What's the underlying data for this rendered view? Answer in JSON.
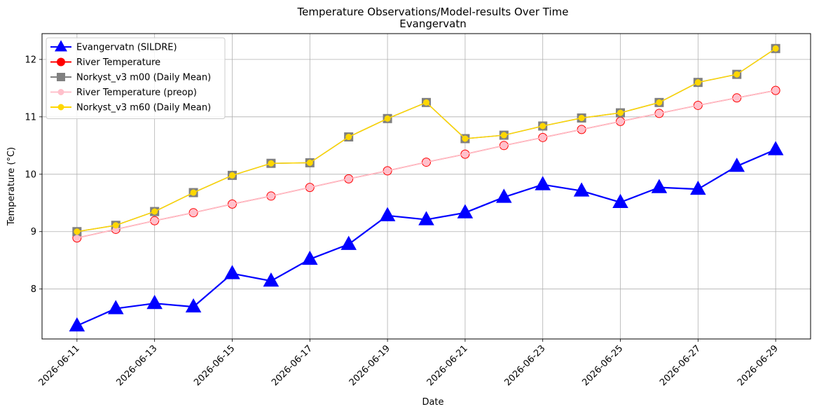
{
  "chart_data": {
    "type": "line",
    "title": "Temperature Observations/Model-results Over Time",
    "subtitle": "Evangervatn",
    "xlabel": "Date",
    "ylabel": "Temperature (°C)",
    "x": [
      "2026-06-11",
      "2026-06-12",
      "2026-06-13",
      "2026-06-14",
      "2026-06-15",
      "2026-06-16",
      "2026-06-17",
      "2026-06-18",
      "2026-06-19",
      "2026-06-20",
      "2026-06-21",
      "2026-06-22",
      "2026-06-23",
      "2026-06-24",
      "2026-06-25",
      "2026-06-26",
      "2026-06-27",
      "2026-06-28",
      "2026-06-29"
    ],
    "xticks": [
      "2026-06-11",
      "2026-06-13",
      "2026-06-15",
      "2026-06-17",
      "2026-06-19",
      "2026-06-21",
      "2026-06-23",
      "2026-06-25",
      "2026-06-27",
      "2026-06-29"
    ],
    "ylim": [
      7.13,
      12.45
    ],
    "yticks": [
      8,
      9,
      10,
      11,
      12
    ],
    "grid": true,
    "legend_position": "top-left",
    "series": [
      {
        "name": "Evangervatn (SILDRE)",
        "color": "#0000ff",
        "marker": "triangle",
        "values": [
          7.36,
          7.66,
          7.75,
          7.69,
          8.27,
          8.14,
          8.52,
          8.78,
          9.28,
          9.21,
          9.33,
          9.6,
          9.82,
          9.71,
          9.51,
          9.77,
          9.74,
          10.14,
          10.43
        ]
      },
      {
        "name": "River Temperature",
        "color": "#ff0000",
        "marker": "circle",
        "values": [
          8.89,
          9.04,
          9.19,
          9.33,
          9.48,
          9.62,
          9.77,
          9.92,
          10.06,
          10.21,
          10.35,
          10.5,
          10.64,
          10.78,
          10.92,
          11.06,
          11.2,
          11.33,
          11.46
        ]
      },
      {
        "name": "Norkyst_v3 m00 (Daily Mean)",
        "color": "#808080",
        "marker": "square",
        "values": [
          9.0,
          9.11,
          9.35,
          9.68,
          9.98,
          10.19,
          10.2,
          10.65,
          10.97,
          11.25,
          10.62,
          10.68,
          10.84,
          10.98,
          11.07,
          11.25,
          11.6,
          11.74,
          12.19
        ]
      },
      {
        "name": "River Temperature (preop)",
        "color": "#ffc0cb",
        "marker": "circle",
        "values": [
          8.89,
          9.04,
          9.19,
          9.33,
          9.48,
          9.62,
          9.77,
          9.92,
          10.06,
          10.21,
          10.35,
          10.5,
          10.64,
          10.78,
          10.92,
          11.06,
          11.2,
          11.33,
          11.46
        ]
      },
      {
        "name": "Norkyst_v3 m60 (Daily Mean)",
        "color": "#ffd700",
        "marker": "circle",
        "values": [
          9.0,
          9.11,
          9.35,
          9.68,
          9.98,
          10.19,
          10.2,
          10.65,
          10.97,
          11.25,
          10.62,
          10.68,
          10.84,
          10.98,
          11.07,
          11.25,
          11.6,
          11.74,
          12.19
        ]
      }
    ]
  }
}
